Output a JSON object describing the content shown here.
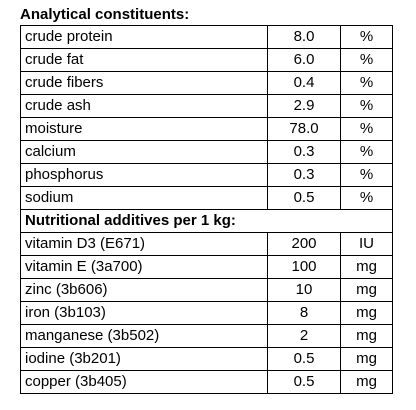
{
  "title": "Analytical constituents:",
  "analytical": [
    {
      "name": "crude protein",
      "value": "8.0",
      "unit": "%"
    },
    {
      "name": "crude fat",
      "value": "6.0",
      "unit": "%"
    },
    {
      "name": "crude fibers",
      "value": "0.4",
      "unit": "%"
    },
    {
      "name": "crude ash",
      "value": "2.9",
      "unit": "%"
    },
    {
      "name": "moisture",
      "value": "78.0",
      "unit": "%"
    },
    {
      "name": "calcium",
      "value": "0.3",
      "unit": "%"
    },
    {
      "name": "phosphorus",
      "value": "0.3",
      "unit": "%"
    },
    {
      "name": "sodium",
      "value": "0.5",
      "unit": "%"
    }
  ],
  "additives_heading": "Nutritional additives per 1 kg:",
  "additives": [
    {
      "name": "vitamin D3 (E671)",
      "value": "200",
      "unit": "IU"
    },
    {
      "name": "vitamin E (3a700)",
      "value": "100",
      "unit": "mg"
    },
    {
      "name": "zinc (3b606)",
      "value": "10",
      "unit": "mg"
    },
    {
      "name": "iron (3b103)",
      "value": "8",
      "unit": "mg"
    },
    {
      "name": "manganese (3b502)",
      "value": "2",
      "unit": "mg"
    },
    {
      "name": "iodine (3b201)",
      "value": "0.5",
      "unit": "mg"
    },
    {
      "name": "copper (3b405)",
      "value": "0.5",
      "unit": "mg"
    }
  ]
}
